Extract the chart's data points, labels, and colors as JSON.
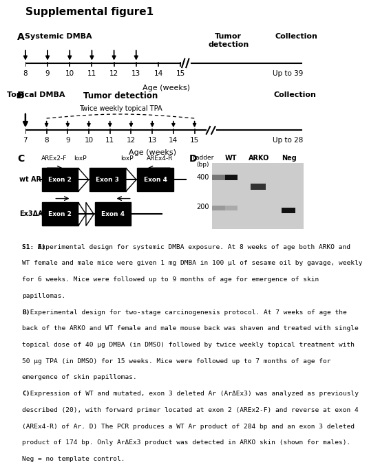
{
  "title": "Supplemental figure1",
  "panel_A": {
    "label": "A",
    "dmba_label": "Systemic DMBA",
    "tumor_label": "Tumor\ndetection",
    "collection_label": "Collection",
    "age_label": "Age (weeks)",
    "upto_label": "Up to 39",
    "arrow_weeks": [
      8,
      9,
      10,
      11,
      12,
      13
    ],
    "tick_weeks": [
      8,
      9,
      10,
      11,
      12,
      13,
      14,
      15
    ]
  },
  "panel_B": {
    "label": "B",
    "dmba_label": "Topical DMBA",
    "tpa_label": "Twice weekly topical TPA",
    "tumor_label": "Tumor detection",
    "collection_label": "Collection",
    "age_label": "Age (weeks)",
    "upto_label": "Up to 28",
    "dmba_week": 7,
    "tpa_weeks": [
      8,
      9,
      10,
      11,
      12,
      13,
      14,
      15
    ],
    "tick_weeks": [
      7,
      8,
      9,
      10,
      11,
      12,
      13,
      14,
      15
    ]
  },
  "panel_C": {
    "label": "C",
    "wt_label": "wt AR",
    "ex3_label": "Ex3ΔAR",
    "arex2f_label": "AREx2-F",
    "arex4r_label": "AREx4-R",
    "loxp1_label": "loxP",
    "loxp2_label": "loxP"
  },
  "panel_D": {
    "label": "D",
    "ladder_label": "Ladder\n(bp)"
  },
  "caption_parts": [
    {
      "bold": "S1: A)",
      "normal": " Experimental design for systemic DMBA exposure. At 8 weeks of age both ARKO and WT female and male mice were given 1 mg DMBA in 100 μl of sesame oil by gavage, weekly for 6 weeks. Mice were followed up to 9 months of age for emergence of skin papillomas."
    },
    {
      "bold": "B)",
      "normal": " Experimental design for two-stage carcinogenesis protocol. At 7 weeks of age the back of the ARKO and WT female and male mouse back was shaven and treated with single topical dose of 40 μg DMBA (in DMSO) followed by twice weekly topical treatment with 50 μg TPA (in DMSO) for 15 weeks. Mice were followed up to 7 months of age for emergence of skin papillomas."
    },
    {
      "bold": "C)",
      "normal": " Expression of WT and mutated, exon 3 deleted Ar (ArΔEx3) was analyzed as previously described (20), with forward primer located at exon 2 (AREx2-F) and reverse at exon 4 (AREx4-R) of Ar. D) The PCR produces a WT Ar product of 284 bp and an exon 3 deleted product of 174 bp. Only ArΔEx3 product was detected in ARKO skin (shown for males). Neg = no template control."
    }
  ]
}
